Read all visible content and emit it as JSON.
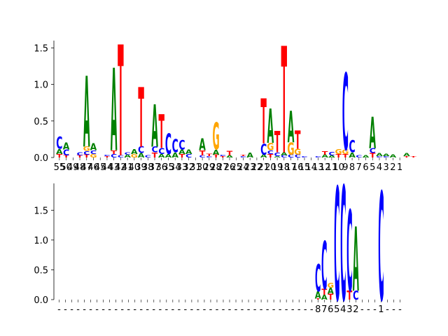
{
  "colors": {
    "A": "#008000",
    "C": "#0000ff",
    "G": "#ffa500",
    "T": "#ff0000"
  },
  "chart_data": [
    {
      "type": "sequence-logo",
      "ylim": [
        0,
        1.6
      ],
      "yticks": [
        {
          "value": 0.0,
          "label": "0.0"
        },
        {
          "value": 0.5,
          "label": "0.5"
        },
        {
          "value": 1.0,
          "label": "1.0"
        },
        {
          "value": 1.5,
          "label": "1.5"
        }
      ],
      "position_labels": [
        "55",
        "50",
        "49",
        "48",
        "47",
        "46",
        "45",
        "44",
        "43",
        "42",
        "41",
        "40",
        "39",
        "38",
        "37",
        "36",
        "35",
        "34",
        "33",
        "32",
        "31",
        "30",
        "29",
        "28",
        "27",
        "26",
        "25",
        "24",
        "23",
        "22",
        "21",
        "20",
        "19",
        "18",
        "17",
        "16",
        "15",
        "14",
        "13",
        "12",
        "11",
        "10",
        "9",
        "8",
        "7",
        "6",
        "5",
        "4",
        "3",
        "2",
        "1"
      ],
      "columns": [
        {
          "pos": 0,
          "stack": [
            [
              "T",
              0.05
            ],
            [
              "A",
              0.07
            ],
            [
              "C",
              0.17
            ]
          ]
        },
        {
          "pos": 1,
          "stack": [
            [
              "T",
              0.03
            ],
            [
              "C",
              0.08
            ],
            [
              "A",
              0.09
            ]
          ]
        },
        {
          "pos": 3,
          "stack": [
            [
              "T",
              0.03
            ],
            [
              "C",
              0.04
            ]
          ]
        },
        {
          "pos": 4,
          "stack": [
            [
              "T",
              0.04
            ],
            [
              "C",
              0.05
            ],
            [
              "G",
              0.06
            ],
            [
              "A",
              0.97
            ]
          ]
        },
        {
          "pos": 5,
          "stack": [
            [
              "G",
              0.05
            ],
            [
              "C",
              0.05
            ],
            [
              "A",
              0.09
            ]
          ]
        },
        {
          "pos": 7,
          "stack": [
            [
              "T",
              0.02
            ],
            [
              "C",
              0.02
            ]
          ]
        },
        {
          "pos": 8,
          "stack": [
            [
              "C",
              0.05
            ],
            [
              "T",
              0.05
            ],
            [
              "A",
              1.13
            ]
          ]
        },
        {
          "pos": 9,
          "stack": [
            [
              "C",
              0.03
            ],
            [
              "T",
              1.52
            ]
          ]
        },
        {
          "pos": 10,
          "stack": [
            [
              "A",
              0.04
            ],
            [
              "C",
              0.03
            ]
          ]
        },
        {
          "pos": 11,
          "stack": [
            [
              "G",
              0.05
            ],
            [
              "A",
              0.07
            ]
          ]
        },
        {
          "pos": 12,
          "stack": [
            [
              "A",
              0.06
            ],
            [
              "C",
              0.09
            ],
            [
              "T",
              0.82
            ]
          ]
        },
        {
          "pos": 13,
          "stack": [
            [
              "C",
              0.03
            ]
          ]
        },
        {
          "pos": 14,
          "stack": [
            [
              "T",
              0.07
            ],
            [
              "C",
              0.08
            ],
            [
              "A",
              0.58
            ]
          ]
        },
        {
          "pos": 15,
          "stack": [
            [
              "A",
              0.05
            ],
            [
              "C",
              0.08
            ],
            [
              "T",
              0.46
            ]
          ]
        },
        {
          "pos": 16,
          "stack": [
            [
              "A",
              0.05
            ],
            [
              "C",
              0.28
            ]
          ]
        },
        {
          "pos": 17,
          "stack": [
            [
              "A",
              0.07
            ],
            [
              "C",
              0.18
            ]
          ]
        },
        {
          "pos": 18,
          "stack": [
            [
              "T",
              0.05
            ],
            [
              "A",
              0.06
            ],
            [
              "C",
              0.13
            ]
          ]
        },
        {
          "pos": 19,
          "stack": [
            [
              "C",
              0.05
            ],
            [
              "A",
              0.06
            ]
          ]
        },
        {
          "pos": 21,
          "stack": [
            [
              "C",
              0.03
            ],
            [
              "T",
              0.07
            ],
            [
              "A",
              0.16
            ]
          ]
        },
        {
          "pos": 22,
          "stack": [
            [
              "C",
              0.02
            ],
            [
              "T",
              0.03
            ]
          ]
        },
        {
          "pos": 23,
          "stack": [
            [
              "T",
              0.04
            ],
            [
              "A",
              0.07
            ],
            [
              "G",
              0.37
            ]
          ]
        },
        {
          "pos": 24,
          "stack": [
            [
              "T",
              0.02
            ],
            [
              "C",
              0.02
            ]
          ]
        },
        {
          "pos": 25,
          "stack": [
            [
              "A",
              0.03
            ],
            [
              "T",
              0.06
            ]
          ]
        },
        {
          "pos": 27,
          "stack": [
            [
              "C",
              0.02
            ],
            [
              "T",
              0.02
            ]
          ]
        },
        {
          "pos": 28,
          "stack": [
            [
              "A",
              0.07
            ]
          ]
        },
        {
          "pos": 30,
          "stack": [
            [
              "A",
              0.04
            ],
            [
              "C",
              0.15
            ],
            [
              "T",
              0.62
            ]
          ]
        },
        {
          "pos": 31,
          "stack": [
            [
              "T",
              0.05
            ],
            [
              "C",
              0.05
            ],
            [
              "G",
              0.1
            ],
            [
              "A",
              0.47
            ]
          ]
        },
        {
          "pos": 32,
          "stack": [
            [
              "A",
              0.02
            ],
            [
              "C",
              0.05
            ],
            [
              "T",
              0.29
            ]
          ]
        },
        {
          "pos": 33,
          "stack": [
            [
              "C",
              0.03
            ],
            [
              "A",
              0.04
            ],
            [
              "T",
              1.46
            ]
          ]
        },
        {
          "pos": 34,
          "stack": [
            [
              "C",
              0.04
            ],
            [
              "G",
              0.17
            ],
            [
              "A",
              0.43
            ]
          ]
        },
        {
          "pos": 35,
          "stack": [
            [
              "C",
              0.04
            ],
            [
              "G",
              0.08
            ],
            [
              "T",
              0.25
            ]
          ]
        },
        {
          "pos": 36,
          "stack": [
            [
              "C",
              0.02
            ]
          ]
        },
        {
          "pos": 38,
          "stack": [
            [
              "C",
              0.02
            ]
          ]
        },
        {
          "pos": 39,
          "stack": [
            [
              "A",
              0.04
            ],
            [
              "T",
              0.05
            ]
          ]
        },
        {
          "pos": 40,
          "stack": [
            [
              "A",
              0.03
            ],
            [
              "C",
              0.05
            ]
          ]
        },
        {
          "pos": 41,
          "stack": [
            [
              "T",
              0.05
            ],
            [
              "G",
              0.07
            ]
          ]
        },
        {
          "pos": 42,
          "stack": [
            [
              "T",
              0.05
            ],
            [
              "G",
              0.06
            ],
            [
              "C",
              1.05
            ]
          ]
        },
        {
          "pos": 43,
          "stack": [
            [
              "A",
              0.07
            ],
            [
              "C",
              0.17
            ]
          ]
        },
        {
          "pos": 44,
          "stack": [
            [
              "C",
              0.03
            ]
          ]
        },
        {
          "pos": 45,
          "stack": [
            [
              "A",
              0.03
            ]
          ]
        },
        {
          "pos": 46,
          "stack": [
            [
              "T",
              0.06
            ],
            [
              "C",
              0.07
            ],
            [
              "A",
              0.43
            ]
          ]
        },
        {
          "pos": 47,
          "stack": [
            [
              "C",
              0.02
            ],
            [
              "A",
              0.04
            ]
          ]
        },
        {
          "pos": 48,
          "stack": [
            [
              "C",
              0.02
            ],
            [
              "A",
              0.03
            ]
          ]
        },
        {
          "pos": 49,
          "stack": [
            [
              "A",
              0.04
            ]
          ]
        },
        {
          "pos": 51,
          "stack": [
            [
              "T",
              0.02
            ],
            [
              "A",
              0.04
            ]
          ]
        },
        {
          "pos": 52,
          "stack": [
            [
              "T",
              0.02
            ]
          ]
        }
      ]
    },
    {
      "type": "sequence-logo",
      "ylim": [
        0,
        1.95
      ],
      "yticks": [
        {
          "value": 0.0,
          "label": "0.0"
        },
        {
          "value": 0.5,
          "label": "0.5"
        },
        {
          "value": 1.0,
          "label": "1.0"
        },
        {
          "value": 1.5,
          "label": "1.5"
        }
      ],
      "position_labels": [
        "-",
        "-",
        "-",
        "-",
        "-",
        "-",
        "-",
        "-",
        "-",
        "-",
        "-",
        "-",
        "-",
        "-",
        "-",
        "-",
        "-",
        "-",
        "-",
        "-",
        "-",
        "-",
        "-",
        "-",
        "-",
        "-",
        "-",
        "-",
        "-",
        "-",
        "-",
        "-",
        "-",
        "-",
        "-",
        "-",
        "-",
        "-",
        "-",
        "-",
        "-",
        "8",
        "7",
        "6",
        "5",
        "4",
        "3",
        "2",
        "-",
        "-",
        "-",
        "1",
        "-",
        "-",
        "-"
      ],
      "columns": [
        {
          "pos": 41,
          "stack": [
            [
              "T",
              0.02
            ],
            [
              "A",
              0.12
            ],
            [
              "C",
              0.46
            ]
          ]
        },
        {
          "pos": 42,
          "stack": [
            [
              "A",
              0.08
            ],
            [
              "T",
              0.1
            ],
            [
              "C",
              0.8
            ]
          ]
        },
        {
          "pos": 43,
          "stack": [
            [
              "T",
              0.1
            ],
            [
              "A",
              0.1
            ],
            [
              "G",
              0.08
            ]
          ]
        },
        {
          "pos": 44,
          "stack": [
            [
              "C",
              1.9
            ]
          ]
        },
        {
          "pos": 45,
          "stack": [
            [
              "C",
              1.92
            ]
          ]
        },
        {
          "pos": 46,
          "stack": [
            [
              "T",
              0.15
            ],
            [
              "C",
              1.36
            ]
          ]
        },
        {
          "pos": 47,
          "stack": [
            [
              "C",
              0.15
            ],
            [
              "A",
              1.08
            ]
          ]
        },
        {
          "pos": 51,
          "stack": [
            [
              "C",
              1.82
            ]
          ]
        }
      ]
    }
  ]
}
